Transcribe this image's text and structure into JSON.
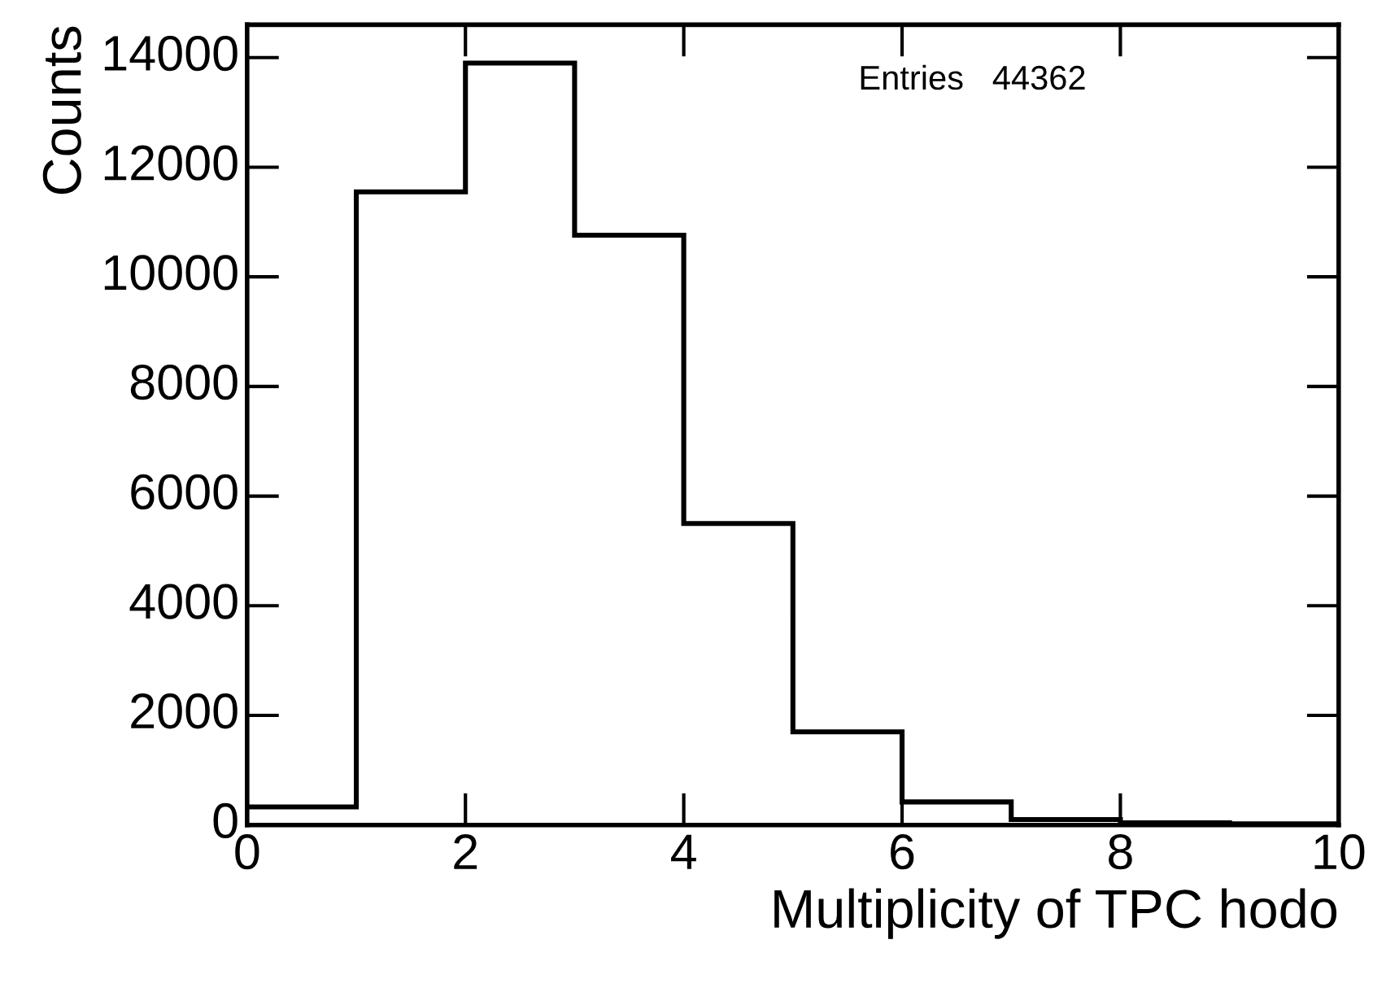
{
  "chart_data": {
    "type": "histogram",
    "xlabel": "Multiplicity of TPC hodo",
    "ylabel": "Counts",
    "bins": [
      0,
      1,
      2,
      3,
      4,
      5,
      6,
      7,
      8,
      9,
      10
    ],
    "values": [
      330,
      11550,
      13900,
      10760,
      5500,
      1700,
      420,
      100,
      40,
      20
    ],
    "color": "#000000",
    "xlim": [
      0,
      10
    ],
    "xticks": [
      0,
      2,
      4,
      6,
      8,
      10
    ],
    "ylim": [
      0,
      14600
    ],
    "yticks": [
      0,
      2000,
      4000,
      6000,
      8000,
      10000,
      12000,
      14000
    ],
    "annotations": [
      "Entries   44362"
    ]
  }
}
